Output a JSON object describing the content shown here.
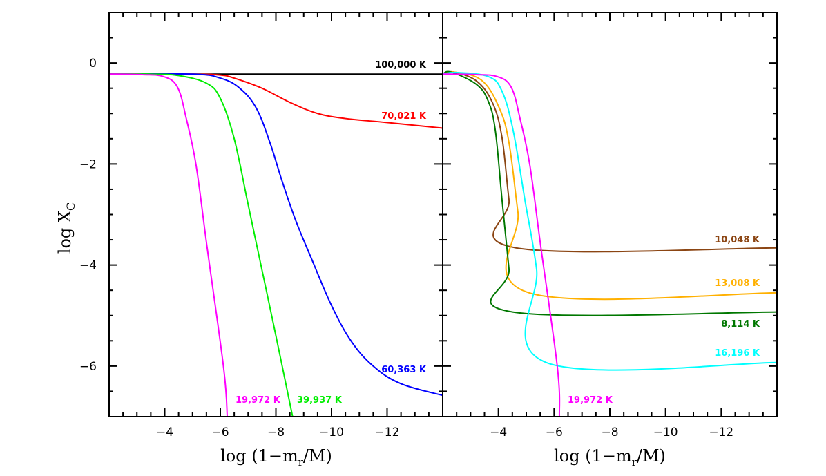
{
  "chart_data": [
    {
      "type": "line",
      "panel": "left",
      "xlabel": "log (1-m_r/M)",
      "ylabel": "log X_C",
      "xlim": [
        -2,
        -14
      ],
      "ylim": [
        -7,
        1
      ],
      "xticks": [
        "-4",
        "-6",
        "-8",
        "-10",
        "-12"
      ],
      "yticks": [
        "0",
        "-2",
        "-4",
        "-6"
      ],
      "grid": false,
      "series": [
        {
          "name": "100,000 K",
          "color": "#000000",
          "x": [
            -2,
            -14
          ],
          "y": [
            -0.22,
            -0.22
          ]
        },
        {
          "name": "70,021 K",
          "color": "#ff0000",
          "x": [
            -2,
            -5,
            -6,
            -6.5,
            -7.5,
            -8.5,
            -9.5,
            -10.5,
            -12,
            -14
          ],
          "y": [
            -0.22,
            -0.22,
            -0.24,
            -0.3,
            -0.5,
            -0.78,
            -1.0,
            -1.1,
            -1.18,
            -1.29
          ]
        },
        {
          "name": "60,363 K",
          "color": "#0000ff",
          "x": [
            -2,
            -5,
            -6,
            -6.7,
            -7.3,
            -7.8,
            -8.2,
            -8.7,
            -9.3,
            -10,
            -10.7,
            -11.5,
            -12.5,
            -14
          ],
          "y": [
            -0.22,
            -0.22,
            -0.3,
            -0.5,
            -0.9,
            -1.6,
            -2.3,
            -3.1,
            -3.9,
            -4.8,
            -5.5,
            -6.0,
            -6.35,
            -6.58
          ]
        },
        {
          "name": "39,937 K",
          "color": "#00ee00",
          "x": [
            -2,
            -3.5,
            -4.5,
            -5.5,
            -6,
            -6.5,
            -7,
            -7.5,
            -8,
            -8.6
          ],
          "y": [
            -0.22,
            -0.22,
            -0.25,
            -0.4,
            -0.7,
            -1.5,
            -2.8,
            -4.1,
            -5.4,
            -7
          ]
        },
        {
          "name": "19,972 K",
          "color": "#ff00ff",
          "x": [
            -2,
            -3.2,
            -3.96,
            -4.46,
            -4.78,
            -5.13,
            -5.52,
            -6.12,
            -6.25
          ],
          "y": [
            -0.22,
            -0.23,
            -0.27,
            -0.48,
            -1.11,
            -2.03,
            -3.63,
            -6.04,
            -7
          ]
        }
      ]
    },
    {
      "type": "line",
      "panel": "right",
      "xlabel": "log (1-m_r/M)",
      "xlim": [
        -2,
        -14
      ],
      "ylim": [
        -7,
        1
      ],
      "xticks": [
        "-4",
        "-6",
        "-8",
        "-10",
        "-12"
      ],
      "grid": false,
      "series": [
        {
          "name": "10,048 K",
          "color": "#8b4513",
          "x": [
            -2,
            -2.4,
            -3.22,
            -3.79,
            -4.13,
            -4.38,
            -4.63,
            -14
          ],
          "y": [
            -0.22,
            -0.18,
            -0.36,
            -0.79,
            -1.48,
            -2.71,
            -3.66,
            -3.66
          ]
        },
        {
          "name": "13,008 K",
          "color": "#ffb000",
          "x": [
            -2,
            -2.4,
            -3.39,
            -4.03,
            -4.38,
            -4.7,
            -5.1,
            -14
          ],
          "y": [
            -0.22,
            -0.18,
            -0.34,
            -0.89,
            -1.58,
            -2.95,
            -4.55,
            -4.55
          ]
        },
        {
          "name": "8,114 K",
          "color": "#007700",
          "x": [
            -2,
            -2.3,
            -3.2,
            -3.63,
            -3.89,
            -4.13,
            -4.38,
            -4.51,
            -14
          ],
          "y": [
            -0.22,
            -0.18,
            -0.42,
            -0.75,
            -1.34,
            -2.71,
            -4.08,
            -4.93,
            -4.93
          ]
        },
        {
          "name": "16,196 K",
          "color": "#00ffff",
          "x": [
            -2,
            -2.5,
            -3.64,
            -4.13,
            -4.53,
            -4.95,
            -5.37,
            -5.72,
            -14
          ],
          "y": [
            -0.22,
            -0.19,
            -0.27,
            -0.56,
            -1.34,
            -2.71,
            -4.08,
            -5.93,
            -5.93
          ]
        },
        {
          "name": "19,972 K",
          "color": "#ff00ff",
          "x": [
            -2,
            -3.2,
            -3.96,
            -4.46,
            -4.78,
            -5.13,
            -5.52,
            -6.12,
            -6.19
          ],
          "y": [
            -0.22,
            -0.23,
            -0.27,
            -0.48,
            -1.11,
            -2.03,
            -3.63,
            -6.04,
            -7
          ]
        }
      ]
    }
  ]
}
